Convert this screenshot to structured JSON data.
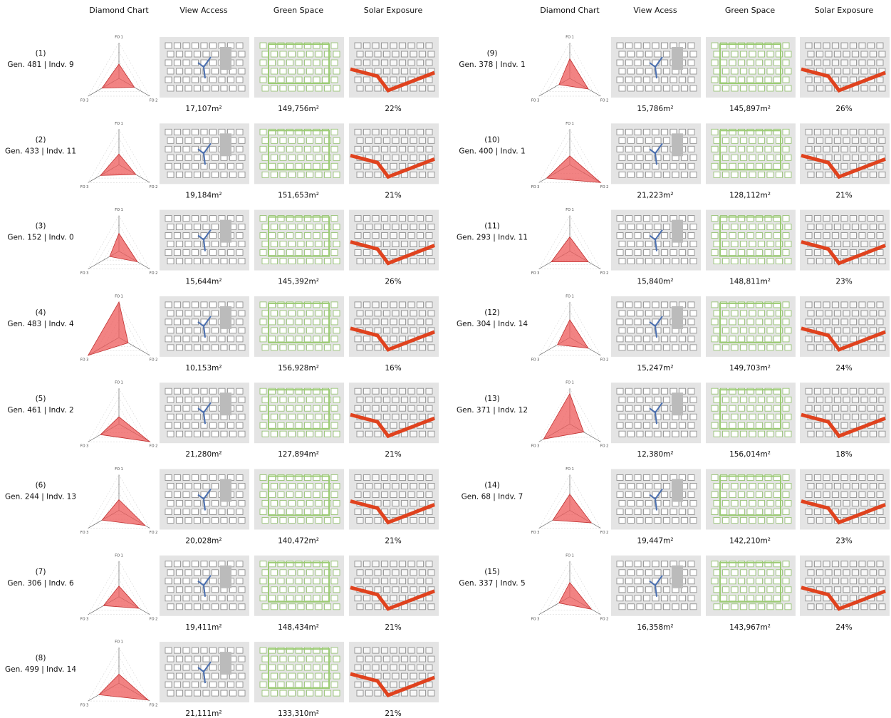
{
  "headers_left": [
    "Diamond Chart",
    "View Access",
    "Green Space",
    "Solar Exposure"
  ],
  "headers_right": [
    "Diamond Chart",
    "View Acess",
    "Green Space",
    "Solar Exposure"
  ],
  "axis_labels": [
    "FO 1",
    "FO 2",
    "FO 3"
  ],
  "rows": [
    {
      "index": "(1)",
      "label": "Gen. 481 | Indv. 9",
      "fo": [
        0.4,
        0.5,
        0.55
      ],
      "view": "17,107m²",
      "green": "149,756m²",
      "solar": "22%"
    },
    {
      "index": "(2)",
      "label": "Gen. 433 | Indv. 11",
      "fo": [
        0.3,
        0.55,
        0.6
      ],
      "view": "19,184m²",
      "green": "151,653m²",
      "solar": "21%"
    },
    {
      "index": "(3)",
      "label": "Gen. 152 | Indv. 0",
      "fo": [
        0.5,
        0.6,
        0.3
      ],
      "view": "15,644m²",
      "green": "145,392m²",
      "solar": "26%"
    },
    {
      "index": "(4)",
      "label": "Gen. 483 | Indv. 4",
      "fo": [
        1.0,
        0.3,
        1.0
      ],
      "view": "10,153m²",
      "green": "156,928m²",
      "solar": "16%"
    },
    {
      "index": "(5)",
      "label": "Gen. 461 | Indv. 2",
      "fo": [
        0.2,
        1.0,
        0.6
      ],
      "view": "21,280m²",
      "green": "127,894m²",
      "solar": "21%"
    },
    {
      "index": "(6)",
      "label": "Gen. 244 | Indv. 13",
      "fo": [
        0.3,
        0.85,
        0.55
      ],
      "view": "20,028m²",
      "green": "140,472m²",
      "solar": "21%"
    },
    {
      "index": "(7)",
      "label": "Gen. 306 | Indv. 6",
      "fo": [
        0.3,
        0.65,
        0.5
      ],
      "view": "19,411m²",
      "green": "148,434m²",
      "solar": "21%"
    },
    {
      "index": "(8)",
      "label": "Gen. 499 | Indv. 14",
      "fo": [
        0.25,
        0.95,
        0.65
      ],
      "view": "21,111m²",
      "green": "133,310m²",
      "solar": "21%"
    },
    {
      "index": "(9)",
      "label": "Gen. 378 | Indv. 1",
      "fo": [
        0.55,
        0.6,
        0.35
      ],
      "view": "15,786m²",
      "green": "145,897m²",
      "solar": "26%"
    },
    {
      "index": "(10)",
      "label": "Gen. 400 | Indv. 1",
      "fo": [
        0.25,
        1.0,
        0.75
      ],
      "view": "21,223m²",
      "green": "128,112m²",
      "solar": "21%"
    },
    {
      "index": "(11)",
      "label": "Gen. 293 | Indv. 11",
      "fo": [
        0.4,
        0.6,
        0.6
      ],
      "view": "15,840m²",
      "green": "148,811m²",
      "solar": "23%"
    },
    {
      "index": "(12)",
      "label": "Gen. 304 | Indv. 14",
      "fo": [
        0.5,
        0.6,
        0.4
      ],
      "view": "15,247m²",
      "green": "149,703m²",
      "solar": "24%"
    },
    {
      "index": "(13)",
      "label": "Gen. 371 | Indv. 12",
      "fo": [
        0.85,
        0.45,
        0.85
      ],
      "view": "12,380m²",
      "green": "156,014m²",
      "solar": "18%"
    },
    {
      "index": "(14)",
      "label": "Gen. 68 | Indv. 7",
      "fo": [
        0.45,
        0.7,
        0.55
      ],
      "view": "19,447m²",
      "green": "142,210m²",
      "solar": "23%"
    },
    {
      "index": "(15)",
      "label": "Gen. 337 | Indv. 5",
      "fo": [
        0.4,
        0.7,
        0.35
      ],
      "view": "16,358m²",
      "green": "143,967m²",
      "solar": "24%"
    }
  ]
}
